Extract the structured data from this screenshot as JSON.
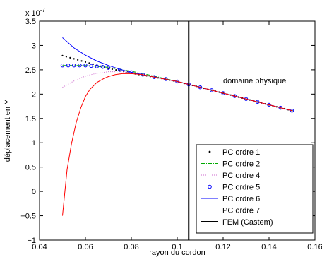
{
  "chart_data": {
    "type": "line",
    "xlabel": "rayon du cordon",
    "ylabel": "déplacement en Y",
    "y_exponent_label": "x 10",
    "y_exponent_power": "-7",
    "xlim": [
      0.04,
      0.16
    ],
    "ylim": [
      -1,
      3.5
    ],
    "x_ticks": [
      0.04,
      0.06,
      0.08,
      0.1,
      0.12,
      0.14,
      0.16
    ],
    "x_tick_labels": [
      "0.04",
      "0.06",
      "0.08",
      "0.1",
      "0.12",
      "0.14",
      "0.16"
    ],
    "y_ticks": [
      -1,
      -0.5,
      0,
      0.5,
      1,
      1.5,
      2,
      2.5,
      3,
      3.5
    ],
    "y_tick_labels": [
      "−1",
      "−0.5",
      "0",
      "0.5",
      "1",
      "1.5",
      "2",
      "2.5",
      "3",
      "3.5"
    ],
    "grid": false,
    "legend_position": "bottom-right",
    "annotation": "domaine physique",
    "series": [
      {
        "name": "PC ordre 1",
        "style": "dots",
        "color": "#000000",
        "x": [
          0.05,
          0.06,
          0.07,
          0.08,
          0.09,
          0.1,
          0.11,
          0.12,
          0.13,
          0.14,
          0.15
        ],
        "y": [
          2.79,
          2.66,
          2.53,
          2.43,
          2.35,
          2.26,
          2.14,
          2.02,
          1.9,
          1.78,
          1.66
        ]
      },
      {
        "name": "PC ordre 2",
        "style": "dashdot",
        "color": "#00aa00",
        "x": [
          0.05,
          0.06,
          0.07,
          0.08,
          0.09,
          0.1,
          0.11,
          0.12,
          0.13,
          0.14,
          0.15
        ],
        "y": [
          2.59,
          2.59,
          2.55,
          2.47,
          2.37,
          2.26,
          2.14,
          2.02,
          1.9,
          1.78,
          1.66
        ]
      },
      {
        "name": "PC ordre 4",
        "style": "dotted",
        "color": "#cc66cc",
        "x": [
          0.05,
          0.055,
          0.06,
          0.065,
          0.07,
          0.075,
          0.08,
          0.09,
          0.1,
          0.11,
          0.12,
          0.13,
          0.14,
          0.15
        ],
        "y": [
          2.14,
          2.27,
          2.37,
          2.43,
          2.46,
          2.46,
          2.44,
          2.36,
          2.26,
          2.14,
          2.02,
          1.9,
          1.78,
          1.66
        ]
      },
      {
        "name": "PC ordre 5",
        "style": "circles",
        "color": "#0000ff",
        "x": [
          0.05,
          0.0525,
          0.055,
          0.0575,
          0.06,
          0.0625,
          0.065,
          0.0675,
          0.07,
          0.075,
          0.08,
          0.085,
          0.09,
          0.095,
          0.1,
          0.105,
          0.11,
          0.115,
          0.12,
          0.125,
          0.13,
          0.135,
          0.14,
          0.145,
          0.15
        ],
        "y": [
          2.59,
          2.59,
          2.59,
          2.59,
          2.59,
          2.58,
          2.57,
          2.56,
          2.54,
          2.5,
          2.45,
          2.4,
          2.35,
          2.31,
          2.26,
          2.2,
          2.14,
          2.08,
          2.02,
          1.96,
          1.9,
          1.84,
          1.78,
          1.72,
          1.66
        ]
      },
      {
        "name": "PC ordre 6",
        "style": "solid",
        "color": "#0000ff",
        "x": [
          0.05,
          0.055,
          0.06,
          0.065,
          0.07,
          0.075,
          0.08,
          0.09,
          0.1,
          0.11,
          0.12,
          0.13,
          0.14,
          0.15
        ],
        "y": [
          3.16,
          2.95,
          2.8,
          2.68,
          2.59,
          2.51,
          2.45,
          2.35,
          2.26,
          2.14,
          2.02,
          1.9,
          1.78,
          1.66
        ]
      },
      {
        "name": "PC ordre 7",
        "style": "solid",
        "color": "#ff0000",
        "x": [
          0.05,
          0.052,
          0.054,
          0.056,
          0.058,
          0.06,
          0.062,
          0.065,
          0.068,
          0.07,
          0.073,
          0.076,
          0.08,
          0.085,
          0.09,
          0.1,
          0.11,
          0.12,
          0.13,
          0.14,
          0.15
        ],
        "y": [
          -0.5,
          0.45,
          1.0,
          1.42,
          1.72,
          1.95,
          2.1,
          2.24,
          2.32,
          2.36,
          2.4,
          2.42,
          2.42,
          2.4,
          2.35,
          2.26,
          2.14,
          2.02,
          1.9,
          1.78,
          1.66
        ]
      },
      {
        "name": "FEM (Castem)",
        "style": "vline",
        "color": "#000000",
        "x": [
          0.105,
          0.105
        ],
        "y": [
          -1,
          3.5
        ]
      }
    ]
  }
}
